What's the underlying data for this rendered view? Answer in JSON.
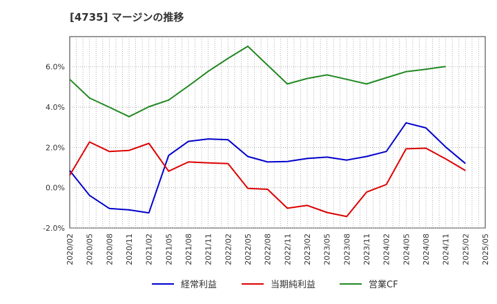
{
  "chart_data": {
    "type": "line",
    "title": "[4735]  マージンの推移",
    "x": [
      "2020/02",
      "2020/05",
      "2020/08",
      "2020/11",
      "2021/02",
      "2021/05",
      "2021/08",
      "2021/11",
      "2022/02",
      "2022/05",
      "2022/08",
      "2022/11",
      "2023/02",
      "2023/05",
      "2023/08",
      "2023/11",
      "2024/02",
      "2024/05",
      "2024/08",
      "2024/11",
      "2025/02",
      "2025/05"
    ],
    "xlabel": "",
    "ylabel": "",
    "ylim": [
      -2.0,
      7.5
    ],
    "yticks": [
      "-2.0%",
      "0.0%",
      "2.0%",
      "4.0%",
      "6.0%"
    ],
    "ytick_values": [
      -2,
      0,
      2,
      4,
      6
    ],
    "grid": true,
    "legend_position": "bottom",
    "series": [
      {
        "name": "経常利益",
        "color": "#0000cc",
        "values": [
          0.85,
          -0.38,
          -1.03,
          -1.1,
          -1.25,
          1.6,
          2.3,
          2.42,
          2.38,
          1.55,
          1.28,
          1.3,
          1.45,
          1.52,
          1.37,
          1.55,
          1.8,
          3.22,
          2.97,
          2.02,
          1.2,
          null
        ]
      },
      {
        "name": "当期純利益",
        "color": "#dd0000",
        "values": [
          0.62,
          2.27,
          1.8,
          1.85,
          2.2,
          0.82,
          1.28,
          1.23,
          1.2,
          -0.03,
          -0.08,
          -1.02,
          -0.88,
          -1.23,
          -1.43,
          -0.22,
          0.16,
          1.93,
          1.96,
          1.43,
          0.85,
          null
        ]
      },
      {
        "name": "営業CF",
        "color": "#228822",
        "values": [
          5.38,
          4.45,
          4.0,
          3.53,
          4.02,
          4.35,
          5.05,
          5.78,
          6.42,
          7.02,
          6.08,
          5.15,
          5.42,
          5.6,
          5.38,
          5.15,
          5.46,
          5.76,
          5.88,
          6.02,
          null,
          null
        ]
      }
    ]
  }
}
